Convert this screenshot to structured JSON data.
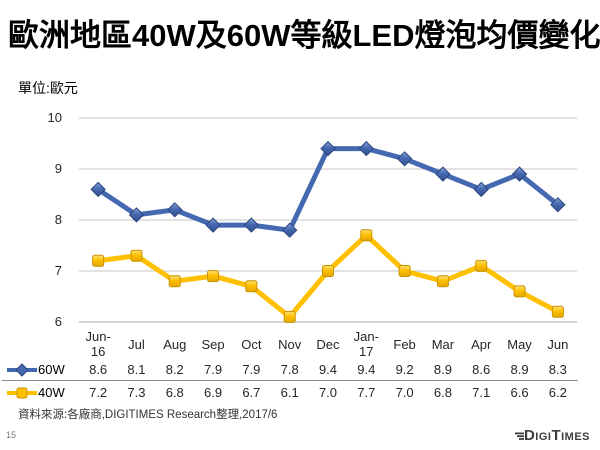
{
  "slide": {
    "title": "歐洲地區40W及60W等級LED燈泡均價變化",
    "unit_label": "單位:歐元",
    "source_note": "資料來源:各廠商,DIGITIMES Research整理,2017/6",
    "page_number": "15",
    "logo_text": "DigiTimes"
  },
  "colors": {
    "gridline": "#c4c4c4",
    "axis_line": "#a9a9a9",
    "table_divider": "#8a8a8a",
    "text": "#262626",
    "logo": "#3d3d3d"
  },
  "chart_data": {
    "type": "line",
    "title": "歐洲地區40W及60W等級LED燈泡均價變化",
    "unit": "歐元",
    "categories": [
      "Jun-\n16",
      "Jul",
      "Aug",
      "Sep",
      "Oct",
      "Nov",
      "Dec",
      "Jan-\n17",
      "Feb",
      "Mar",
      "Apr",
      "May",
      "Jun"
    ],
    "series": [
      {
        "name": "60W",
        "marker": "diamond",
        "color": "#4569b0",
        "color_light": "#8aa2d8",
        "color_dark": "#32508d",
        "edge": "#2c477f",
        "values": [
          "8.6",
          "8.1",
          "8.2",
          "7.9",
          "7.9",
          "7.8",
          "9.4",
          "9.4",
          "9.2",
          "8.9",
          "8.6",
          "8.9",
          "8.3"
        ]
      },
      {
        "name": "40W",
        "marker": "square",
        "color": "#ffc000",
        "color_light": "#ffe07a",
        "color_dark": "#e2a700",
        "edge": "#c99200",
        "values": [
          "7.2",
          "7.3",
          "6.8",
          "6.9",
          "6.7",
          "6.1",
          "7.0",
          "7.7",
          "7.0",
          "6.8",
          "7.1",
          "6.6",
          "6.2"
        ]
      }
    ],
    "ylim": [
      6,
      10
    ],
    "yticks": [
      "10",
      "9",
      "8",
      "7",
      "6"
    ],
    "grid": "horizontal",
    "legend_position": "left-of-table-rows",
    "data_table_shown": true
  }
}
